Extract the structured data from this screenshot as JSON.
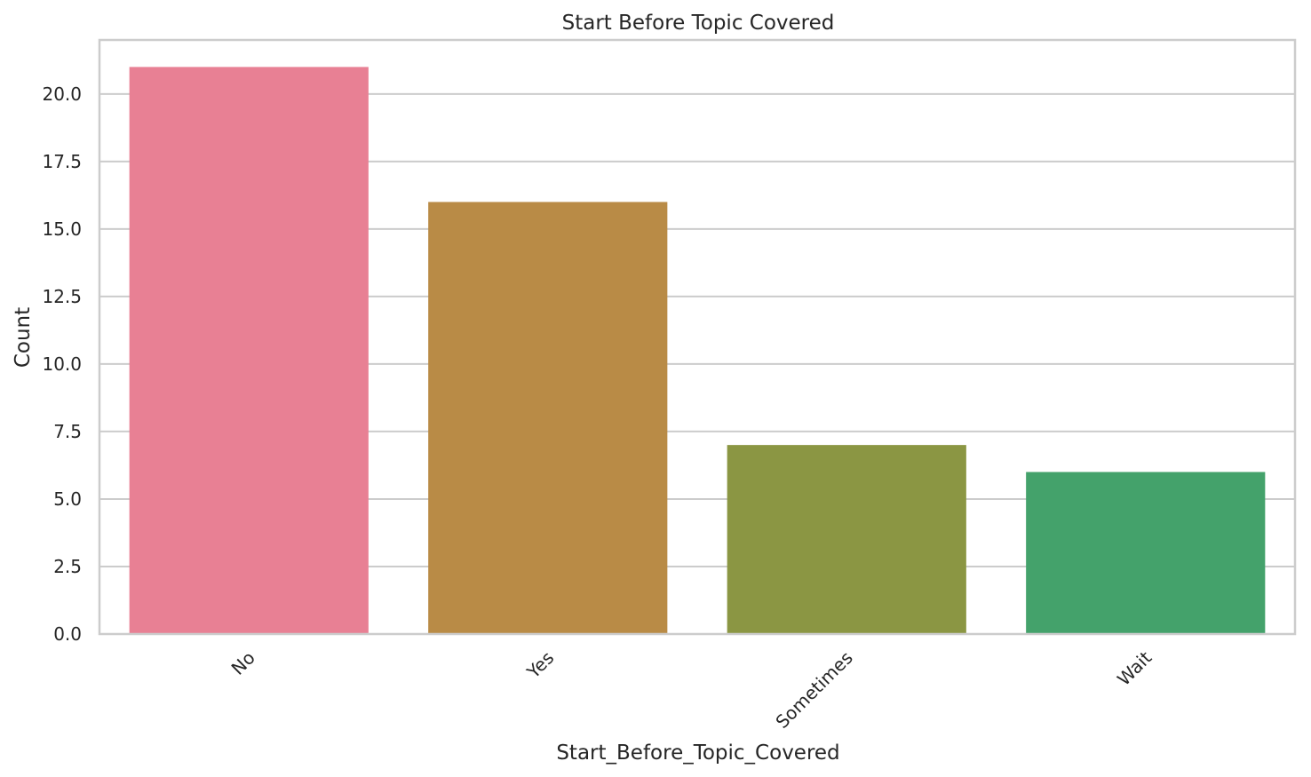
{
  "chart_data": {
    "type": "bar",
    "title": "Start Before Topic Covered",
    "xlabel": "Start_Before_Topic_Covered",
    "ylabel": "Count",
    "categories": [
      "No",
      "Yes",
      "Sometimes",
      "Wait"
    ],
    "values": [
      21,
      16,
      7,
      6
    ],
    "colors": [
      "#e88094",
      "#b98b46",
      "#8b9643",
      "#44a26b"
    ],
    "ylim": [
      0,
      22
    ],
    "yticks": [
      0.0,
      2.5,
      5.0,
      7.5,
      10.0,
      12.5,
      15.0,
      17.5,
      20.0
    ],
    "ytick_labels": [
      "0.0",
      "2.5",
      "5.0",
      "7.5",
      "10.0",
      "12.5",
      "15.0",
      "17.5",
      "20.0"
    ],
    "xtick_rotation": 45,
    "grid": "horizontal",
    "legend": "none"
  }
}
